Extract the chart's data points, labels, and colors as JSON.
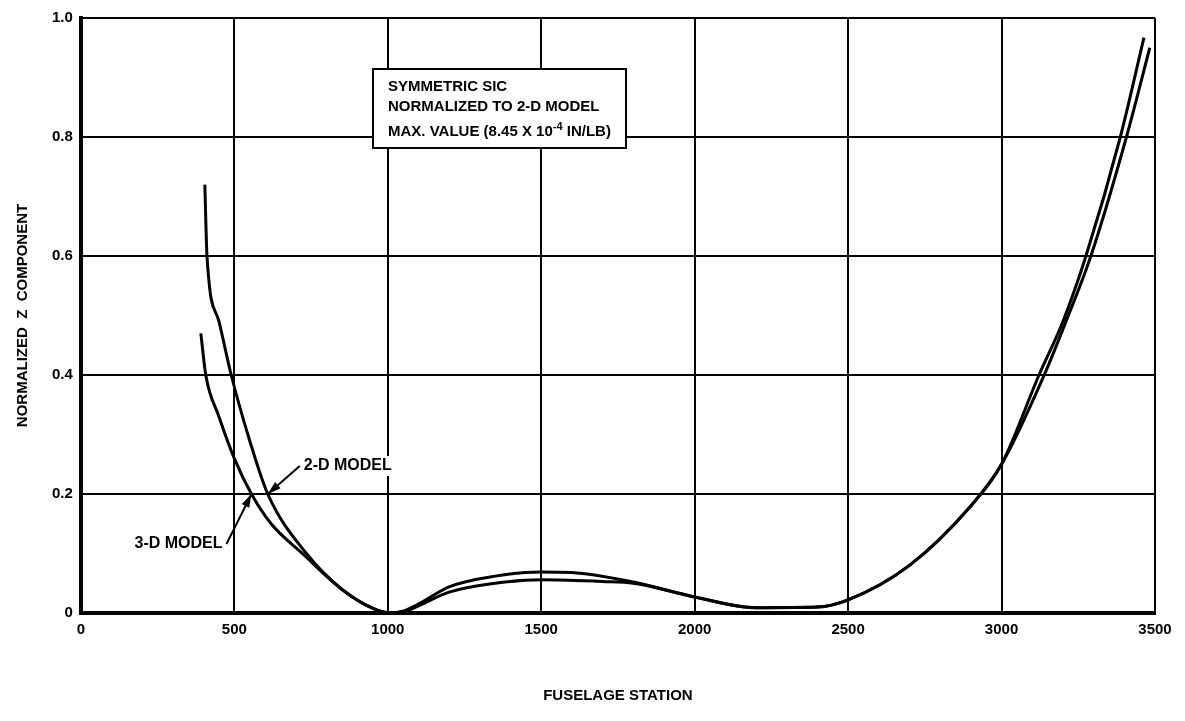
{
  "chart_data": {
    "type": "line",
    "xlabel": "FUSELAGE STATION",
    "ylabel": "NORMALIZED  Z  COMPONENT",
    "xlim": [
      0,
      3500
    ],
    "xticks": [
      0,
      500,
      1000,
      1500,
      2000,
      2500,
      3000,
      3500
    ],
    "ylim": [
      0,
      1.0
    ],
    "yticks": [
      0,
      0.2,
      0.4,
      0.6,
      0.8,
      {
        "value": 1.0,
        "label": "1.0"
      }
    ],
    "grid": true,
    "legend": false,
    "marker": "none",
    "line_style": "solid",
    "series": [
      {
        "name": "2-D MODEL",
        "color": "#000000",
        "x": [
          404,
          411,
          450,
          490,
          550,
          609,
          735,
          850,
          950,
          1007,
          1050,
          1100,
          1200,
          1350,
          1500,
          1700,
          1800,
          2000,
          2200,
          2400,
          2500,
          2700,
          2900,
          3000,
          3122,
          3200,
          3275,
          3387,
          3464
        ],
        "values": [
          0.72,
          0.6,
          0.49,
          0.4,
          0.29,
          0.2,
          0.1,
          0.04,
          0.008,
          0,
          0.002,
          0.012,
          0.035,
          0.05,
          0.056,
          0.053,
          0.05,
          0.027,
          0.009,
          0.01,
          0.022,
          0.08,
          0.18,
          0.25,
          0.4,
          0.49,
          0.6,
          0.8,
          0.967
        ]
      },
      {
        "name": "3-D MODEL",
        "color": "#000000",
        "x": [
          391,
          407,
          450,
          500,
          556,
          620,
          722,
          850,
          950,
          1007,
          1050,
          1100,
          1200,
          1350,
          1500,
          1600,
          1800,
          2000,
          2200,
          2400,
          2500,
          2700,
          2900,
          3000,
          3139,
          3210,
          3291,
          3407,
          3483
        ],
        "values": [
          0.47,
          0.4,
          0.33,
          0.26,
          0.2,
          0.15,
          0.1,
          0.04,
          0.008,
          0,
          0.003,
          0.015,
          0.044,
          0.062,
          0.069,
          0.068,
          0.052,
          0.027,
          0.009,
          0.01,
          0.022,
          0.08,
          0.18,
          0.25,
          0.4,
          0.49,
          0.6,
          0.8,
          0.95
        ]
      }
    ],
    "annotations": [
      "SYMMETRIC SIC\nNORMALIZED TO 2-D MODEL\nMAX. VALUE (8.45 X 10$^{-4}$ IN/LB)"
    ]
  }
}
